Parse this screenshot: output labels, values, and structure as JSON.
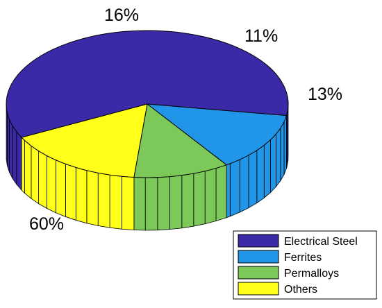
{
  "chart_data": {
    "type": "pie",
    "style": "3d",
    "title": "",
    "legend_position": "bottom-right",
    "slices": [
      {
        "name": "Electrical Steel",
        "value": 60,
        "label": "60%",
        "color": "#3B2AA8"
      },
      {
        "name": "Ferrites",
        "value": 13,
        "label": "13%",
        "color": "#2196E8"
      },
      {
        "name": "Permalloys",
        "value": 11,
        "label": "11%",
        "color": "#7CC95A"
      },
      {
        "name": "Others",
        "value": 16,
        "label": "16%",
        "color": "#FFFF1A"
      }
    ]
  }
}
